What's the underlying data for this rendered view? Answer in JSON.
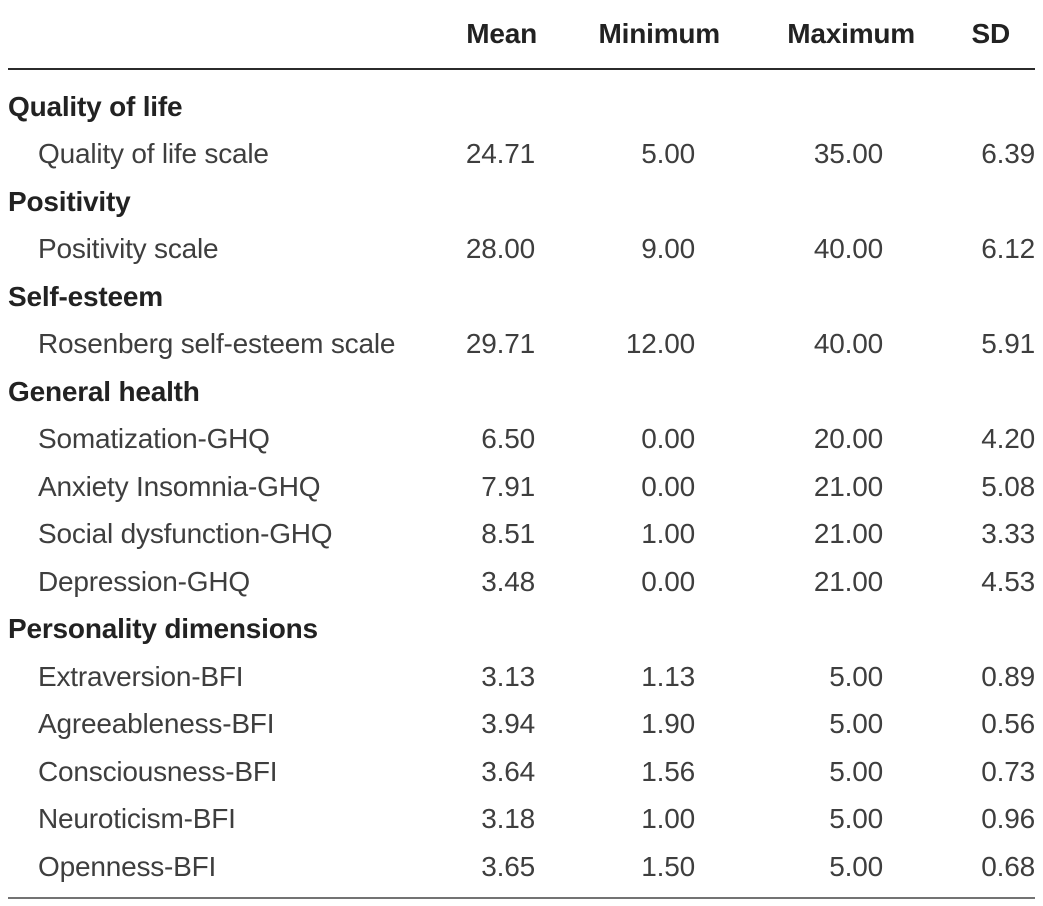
{
  "table": {
    "header": {
      "mean": "Mean",
      "min": "Minimum",
      "max": "Maximum",
      "sd": "SD"
    },
    "sections": [
      {
        "name": "Quality of life",
        "rows": [
          {
            "label": "Quality of life scale",
            "mean": "24.71",
            "min": "5.00",
            "max": "35.00",
            "sd": "6.39"
          }
        ]
      },
      {
        "name": "Positivity",
        "rows": [
          {
            "label": "Positivity scale",
            "mean": "28.00",
            "min": "9.00",
            "max": "40.00",
            "sd": "6.12"
          }
        ]
      },
      {
        "name": "Self-esteem",
        "rows": [
          {
            "label": "Rosenberg self-esteem scale",
            "mean": "29.71",
            "min": "12.00",
            "max": "40.00",
            "sd": "5.91"
          }
        ]
      },
      {
        "name": "General health",
        "rows": [
          {
            "label": "Somatization-GHQ",
            "mean": "6.50",
            "min": "0.00",
            "max": "20.00",
            "sd": "4.20"
          },
          {
            "label": "Anxiety Insomnia-GHQ",
            "mean": "7.91",
            "min": "0.00",
            "max": "21.00",
            "sd": "5.08"
          },
          {
            "label": "Social dysfunction-GHQ",
            "mean": "8.51",
            "min": "1.00",
            "max": "21.00",
            "sd": "3.33"
          },
          {
            "label": "Depression-GHQ",
            "mean": "3.48",
            "min": "0.00",
            "max": "21.00",
            "sd": "4.53"
          }
        ]
      },
      {
        "name": "Personality dimensions",
        "rows": [
          {
            "label": "Extraversion-BFI",
            "mean": "3.13",
            "min": "1.13",
            "max": "5.00",
            "sd": "0.89"
          },
          {
            "label": "Agreeableness-BFI",
            "mean": "3.94",
            "min": "1.90",
            "max": "5.00",
            "sd": "0.56"
          },
          {
            "label": "Consciousness-BFI",
            "mean": "3.64",
            "min": "1.56",
            "max": "5.00",
            "sd": "0.73"
          },
          {
            "label": "Neuroticism-BFI",
            "mean": "3.18",
            "min": "1.00",
            "max": "5.00",
            "sd": "0.96"
          },
          {
            "label": "Openness-BFI",
            "mean": "3.65",
            "min": "1.50",
            "max": "5.00",
            "sd": "0.68"
          }
        ]
      }
    ]
  },
  "chart_data": {
    "type": "table",
    "columns": [
      "",
      "Mean",
      "Minimum",
      "Maximum",
      "SD"
    ],
    "rows": [
      [
        "Quality of life",
        "",
        "",
        "",
        ""
      ],
      [
        "Quality of life scale",
        24.71,
        5.0,
        35.0,
        6.39
      ],
      [
        "Positivity",
        "",
        "",
        "",
        ""
      ],
      [
        "Positivity scale",
        28.0,
        9.0,
        40.0,
        6.12
      ],
      [
        "Self-esteem",
        "",
        "",
        "",
        ""
      ],
      [
        "Rosenberg self-esteem scale",
        29.71,
        12.0,
        40.0,
        5.91
      ],
      [
        "General health",
        "",
        "",
        "",
        ""
      ],
      [
        "Somatization-GHQ",
        6.5,
        0.0,
        20.0,
        4.2
      ],
      [
        "Anxiety Insomnia-GHQ",
        7.91,
        0.0,
        21.0,
        5.08
      ],
      [
        "Social dysfunction-GHQ",
        8.51,
        1.0,
        21.0,
        3.33
      ],
      [
        "Depression-GHQ",
        3.48,
        0.0,
        21.0,
        4.53
      ],
      [
        "Personality dimensions",
        "",
        "",
        "",
        ""
      ],
      [
        "Extraversion-BFI",
        3.13,
        1.13,
        5.0,
        0.89
      ],
      [
        "Agreeableness-BFI",
        3.94,
        1.9,
        5.0,
        0.56
      ],
      [
        "Consciousness-BFI",
        3.64,
        1.56,
        5.0,
        0.73
      ],
      [
        "Neuroticism-BFI",
        3.18,
        1.0,
        5.0,
        0.96
      ],
      [
        "Openness-BFI",
        3.65,
        1.5,
        5.0,
        0.68
      ]
    ]
  }
}
